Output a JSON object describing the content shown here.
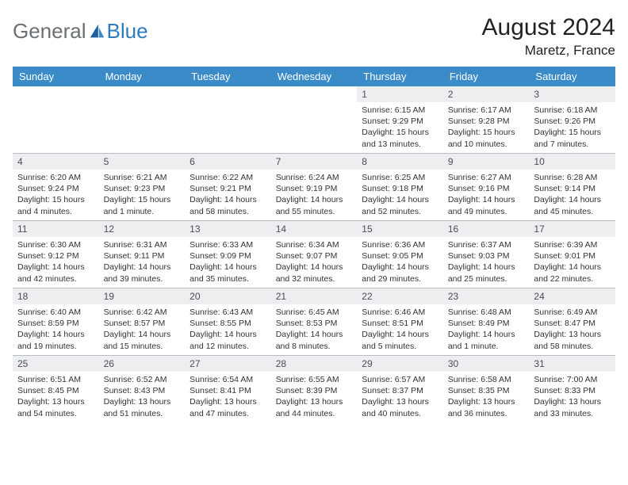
{
  "logo": {
    "general": "General",
    "blue": "Blue"
  },
  "title": "August 2024",
  "subtitle": "Maretz, France",
  "colors": {
    "header_bg": "#3b8bc8",
    "header_text": "#ffffff",
    "daynum_bg": "#eceef0",
    "daynum_text": "#4a4e52",
    "body_text": "#333333",
    "divider": "#b8bdc2",
    "logo_gray": "#6b7074",
    "logo_blue": "#2f7bbf"
  },
  "dayheaders": [
    "Sunday",
    "Monday",
    "Tuesday",
    "Wednesday",
    "Thursday",
    "Friday",
    "Saturday"
  ],
  "weeks": [
    [
      null,
      null,
      null,
      null,
      {
        "n": "1",
        "sr": "Sunrise: 6:15 AM",
        "ss": "Sunset: 9:29 PM",
        "d1": "Daylight: 15 hours",
        "d2": "and 13 minutes."
      },
      {
        "n": "2",
        "sr": "Sunrise: 6:17 AM",
        "ss": "Sunset: 9:28 PM",
        "d1": "Daylight: 15 hours",
        "d2": "and 10 minutes."
      },
      {
        "n": "3",
        "sr": "Sunrise: 6:18 AM",
        "ss": "Sunset: 9:26 PM",
        "d1": "Daylight: 15 hours",
        "d2": "and 7 minutes."
      }
    ],
    [
      {
        "n": "4",
        "sr": "Sunrise: 6:20 AM",
        "ss": "Sunset: 9:24 PM",
        "d1": "Daylight: 15 hours",
        "d2": "and 4 minutes."
      },
      {
        "n": "5",
        "sr": "Sunrise: 6:21 AM",
        "ss": "Sunset: 9:23 PM",
        "d1": "Daylight: 15 hours",
        "d2": "and 1 minute."
      },
      {
        "n": "6",
        "sr": "Sunrise: 6:22 AM",
        "ss": "Sunset: 9:21 PM",
        "d1": "Daylight: 14 hours",
        "d2": "and 58 minutes."
      },
      {
        "n": "7",
        "sr": "Sunrise: 6:24 AM",
        "ss": "Sunset: 9:19 PM",
        "d1": "Daylight: 14 hours",
        "d2": "and 55 minutes."
      },
      {
        "n": "8",
        "sr": "Sunrise: 6:25 AM",
        "ss": "Sunset: 9:18 PM",
        "d1": "Daylight: 14 hours",
        "d2": "and 52 minutes."
      },
      {
        "n": "9",
        "sr": "Sunrise: 6:27 AM",
        "ss": "Sunset: 9:16 PM",
        "d1": "Daylight: 14 hours",
        "d2": "and 49 minutes."
      },
      {
        "n": "10",
        "sr": "Sunrise: 6:28 AM",
        "ss": "Sunset: 9:14 PM",
        "d1": "Daylight: 14 hours",
        "d2": "and 45 minutes."
      }
    ],
    [
      {
        "n": "11",
        "sr": "Sunrise: 6:30 AM",
        "ss": "Sunset: 9:12 PM",
        "d1": "Daylight: 14 hours",
        "d2": "and 42 minutes."
      },
      {
        "n": "12",
        "sr": "Sunrise: 6:31 AM",
        "ss": "Sunset: 9:11 PM",
        "d1": "Daylight: 14 hours",
        "d2": "and 39 minutes."
      },
      {
        "n": "13",
        "sr": "Sunrise: 6:33 AM",
        "ss": "Sunset: 9:09 PM",
        "d1": "Daylight: 14 hours",
        "d2": "and 35 minutes."
      },
      {
        "n": "14",
        "sr": "Sunrise: 6:34 AM",
        "ss": "Sunset: 9:07 PM",
        "d1": "Daylight: 14 hours",
        "d2": "and 32 minutes."
      },
      {
        "n": "15",
        "sr": "Sunrise: 6:36 AM",
        "ss": "Sunset: 9:05 PM",
        "d1": "Daylight: 14 hours",
        "d2": "and 29 minutes."
      },
      {
        "n": "16",
        "sr": "Sunrise: 6:37 AM",
        "ss": "Sunset: 9:03 PM",
        "d1": "Daylight: 14 hours",
        "d2": "and 25 minutes."
      },
      {
        "n": "17",
        "sr": "Sunrise: 6:39 AM",
        "ss": "Sunset: 9:01 PM",
        "d1": "Daylight: 14 hours",
        "d2": "and 22 minutes."
      }
    ],
    [
      {
        "n": "18",
        "sr": "Sunrise: 6:40 AM",
        "ss": "Sunset: 8:59 PM",
        "d1": "Daylight: 14 hours",
        "d2": "and 19 minutes."
      },
      {
        "n": "19",
        "sr": "Sunrise: 6:42 AM",
        "ss": "Sunset: 8:57 PM",
        "d1": "Daylight: 14 hours",
        "d2": "and 15 minutes."
      },
      {
        "n": "20",
        "sr": "Sunrise: 6:43 AM",
        "ss": "Sunset: 8:55 PM",
        "d1": "Daylight: 14 hours",
        "d2": "and 12 minutes."
      },
      {
        "n": "21",
        "sr": "Sunrise: 6:45 AM",
        "ss": "Sunset: 8:53 PM",
        "d1": "Daylight: 14 hours",
        "d2": "and 8 minutes."
      },
      {
        "n": "22",
        "sr": "Sunrise: 6:46 AM",
        "ss": "Sunset: 8:51 PM",
        "d1": "Daylight: 14 hours",
        "d2": "and 5 minutes."
      },
      {
        "n": "23",
        "sr": "Sunrise: 6:48 AM",
        "ss": "Sunset: 8:49 PM",
        "d1": "Daylight: 14 hours",
        "d2": "and 1 minute."
      },
      {
        "n": "24",
        "sr": "Sunrise: 6:49 AM",
        "ss": "Sunset: 8:47 PM",
        "d1": "Daylight: 13 hours",
        "d2": "and 58 minutes."
      }
    ],
    [
      {
        "n": "25",
        "sr": "Sunrise: 6:51 AM",
        "ss": "Sunset: 8:45 PM",
        "d1": "Daylight: 13 hours",
        "d2": "and 54 minutes."
      },
      {
        "n": "26",
        "sr": "Sunrise: 6:52 AM",
        "ss": "Sunset: 8:43 PM",
        "d1": "Daylight: 13 hours",
        "d2": "and 51 minutes."
      },
      {
        "n": "27",
        "sr": "Sunrise: 6:54 AM",
        "ss": "Sunset: 8:41 PM",
        "d1": "Daylight: 13 hours",
        "d2": "and 47 minutes."
      },
      {
        "n": "28",
        "sr": "Sunrise: 6:55 AM",
        "ss": "Sunset: 8:39 PM",
        "d1": "Daylight: 13 hours",
        "d2": "and 44 minutes."
      },
      {
        "n": "29",
        "sr": "Sunrise: 6:57 AM",
        "ss": "Sunset: 8:37 PM",
        "d1": "Daylight: 13 hours",
        "d2": "and 40 minutes."
      },
      {
        "n": "30",
        "sr": "Sunrise: 6:58 AM",
        "ss": "Sunset: 8:35 PM",
        "d1": "Daylight: 13 hours",
        "d2": "and 36 minutes."
      },
      {
        "n": "31",
        "sr": "Sunrise: 7:00 AM",
        "ss": "Sunset: 8:33 PM",
        "d1": "Daylight: 13 hours",
        "d2": "and 33 minutes."
      }
    ]
  ]
}
